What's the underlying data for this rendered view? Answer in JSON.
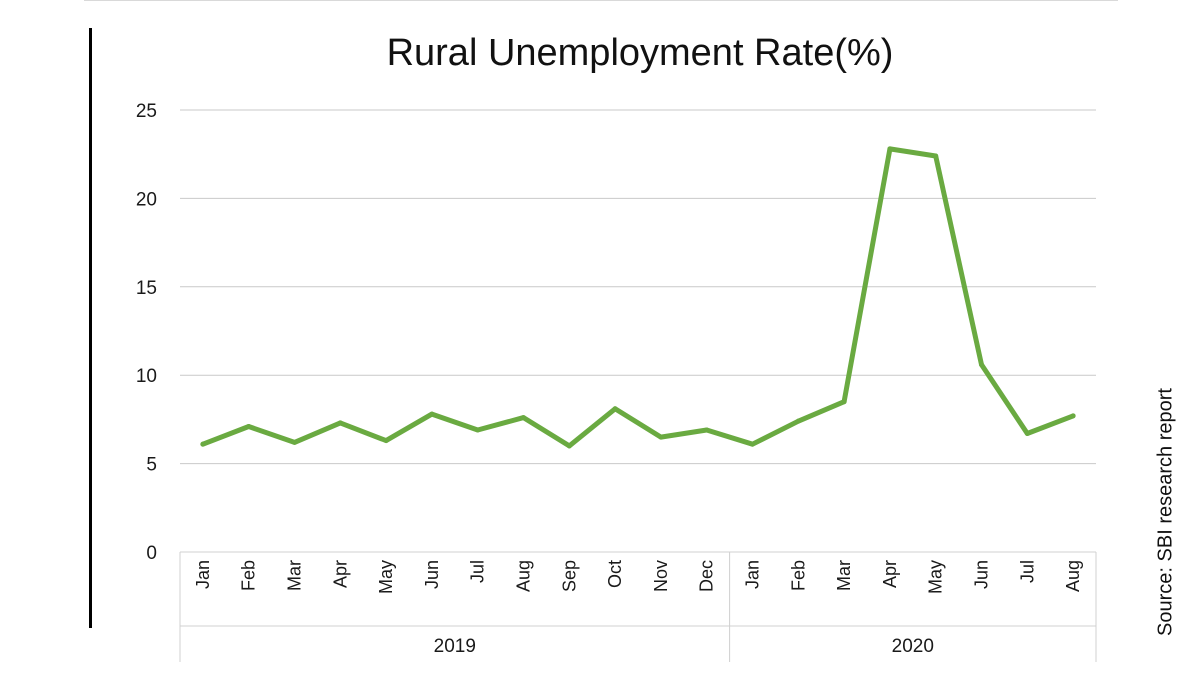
{
  "chart_data": {
    "type": "line",
    "title": "Rural Unemployment Rate(%)",
    "source": "Source: SBI research report",
    "categories": [
      "Jan",
      "Feb",
      "Mar",
      "Apr",
      "May",
      "Jun",
      "Jul",
      "Aug",
      "Sep",
      "Oct",
      "Nov",
      "Dec",
      "Jan",
      "Feb",
      "Mar",
      "Apr",
      "May",
      "Jun",
      "Jul",
      "Aug"
    ],
    "groups": [
      {
        "label": "2019",
        "count": 12
      },
      {
        "label": "2020",
        "count": 8
      }
    ],
    "series": [
      {
        "values": [
          6.1,
          7.1,
          6.2,
          7.3,
          6.3,
          7.8,
          6.9,
          7.6,
          6.0,
          8.1,
          6.5,
          6.9,
          6.1,
          7.4,
          8.5,
          22.8,
          22.4,
          10.6,
          6.7,
          7.7
        ]
      }
    ],
    "ylim": [
      0,
      25
    ],
    "yticks": [
      0,
      5,
      10,
      15,
      20,
      25
    ],
    "grid": true,
    "colors": {
      "line": "#6aaa41",
      "grid": "#c9c9c9",
      "axis": "#d0d0d0"
    }
  }
}
